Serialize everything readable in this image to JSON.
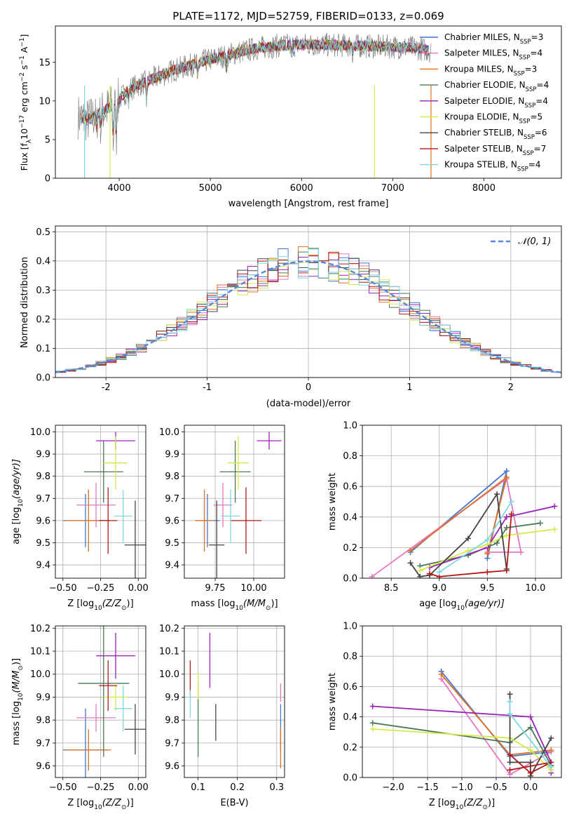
{
  "figure": {
    "title": "PLATE=1172, MJD=52759, FIBERID=0133, z=0.069"
  },
  "series": [
    {
      "name": "Chabrier MILES, N$_{SSP}$=3",
      "label": "Chabrier MILES, N",
      "sub": "SSP",
      "n": "=3",
      "color": "#4477cc"
    },
    {
      "name": "Salpeter MILES, N$_{SSP}$=4",
      "label": "Salpeter MILES, N",
      "sub": "SSP",
      "n": "=4",
      "color": "#e377c2"
    },
    {
      "name": "Kroupa MILES, N$_{SSP}$=3",
      "label": "Kroupa MILES, N",
      "sub": "SSP",
      "n": "=3",
      "color": "#e07020"
    },
    {
      "name": "Chabrier ELODIE, N$_{SSP}$=4",
      "label": "Chabrier ELODIE, N",
      "sub": "SSP",
      "n": "=4",
      "color": "#4a7a55"
    },
    {
      "name": "Salpeter ELODIE, N$_{SSP}$=4",
      "label": "Salpeter ELODIE, N",
      "sub": "SSP",
      "n": "=4",
      "color": "#9a22b8"
    },
    {
      "name": "Kroupa ELODIE, N$_{SSP}$=5",
      "label": "Kroupa ELODIE, N",
      "sub": "SSP",
      "n": "=5",
      "color": "#d8e84a"
    },
    {
      "name": "Chabrier STELIB, N$_{SSP}$=6",
      "label": "Chabrier STELIB, N",
      "sub": "SSP",
      "n": "=6",
      "color": "#444444"
    },
    {
      "name": "Salpeter STELIB, N$_{SSP}$=7",
      "label": "Salpeter STELIB, N",
      "sub": "SSP",
      "n": "=7",
      "color": "#b01818"
    },
    {
      "name": "Kroupa STELIB, N$_{SSP}$=4",
      "label": "Kroupa STELIB, N",
      "sub": "SSP",
      "n": "=4",
      "color": "#7fd8e0"
    }
  ],
  "chart_data": [
    {
      "id": "spectrum",
      "type": "line",
      "xlabel": "wavelength [Angstrom, rest frame]",
      "ylabel": "Flux [f_λ 10^-17 erg cm^-2 s^-1 A^-1]",
      "ylabel_parts": [
        "Flux [f",
        "λ",
        "10",
        "−17",
        " erg cm",
        "−2",
        " s",
        "−1",
        " A",
        "−1",
        "]"
      ],
      "xlim": [
        3300,
        8850
      ],
      "ylim": [
        0,
        19.7
      ],
      "xticks": [
        4000,
        5000,
        6000,
        7000,
        8000
      ],
      "yticks": [
        0,
        5,
        10,
        15
      ],
      "data_color": "#808080",
      "model_color": "#7fd8e0",
      "continuum": {
        "x": [
          3550,
          3650,
          3800,
          3950,
          4100,
          4300,
          4600,
          4900,
          5200,
          5500,
          5800,
          6100,
          6400,
          6700,
          7000,
          7300,
          7400
        ],
        "y": [
          8.0,
          7.5,
          8.5,
          9.5,
          11.5,
          12.5,
          14.0,
          15.0,
          16.0,
          16.8,
          17.2,
          17.3,
          17.2,
          17.1,
          17.0,
          16.8,
          16.5
        ]
      }
    },
    {
      "id": "residuals",
      "type": "histogram",
      "xlabel": "(data-model)/error",
      "ylabel": "Normed distribution",
      "xlim": [
        -2.5,
        2.5
      ],
      "ylim": [
        0,
        0.52
      ],
      "xticks": [
        -2,
        -1,
        0,
        1,
        2
      ],
      "yticks": [
        0.0,
        0.1,
        0.2,
        0.3,
        0.4,
        0.5
      ],
      "bin_width": 0.1,
      "reference": {
        "name": "N(0,1)",
        "label": "𝒩(0, 1)",
        "color": "#5588dd"
      }
    },
    {
      "id": "age_vs_Z",
      "type": "scatter",
      "xlabel_parts": [
        "Z [log",
        "10",
        "(Z/Z",
        "⊙",
        ")]"
      ],
      "ylabel_parts": [
        "age  [log",
        "10",
        "(age/yr)]"
      ],
      "xlim": [
        -0.55,
        0.05
      ],
      "ylim": [
        9.34,
        10.03
      ],
      "xticks": [
        -0.5,
        -0.25,
        0.0
      ],
      "xticklabels": [
        "−0.50",
        "−0.25",
        "0.00"
      ],
      "yticks": [
        9.4,
        9.5,
        9.6,
        9.7,
        9.8,
        9.9,
        10.0
      ],
      "points": [
        {
          "s": 0,
          "x": -0.35,
          "xerr": 0.15,
          "y": 9.6,
          "yerr": 0.12
        },
        {
          "s": 1,
          "x": -0.28,
          "xerr": 0.13,
          "y": 9.67,
          "yerr": 0.1
        },
        {
          "s": 2,
          "x": -0.33,
          "xerr": 0.15,
          "y": 9.6,
          "yerr": 0.14
        },
        {
          "s": 3,
          "x": -0.23,
          "xerr": 0.13,
          "y": 9.82,
          "yerr": 0.14
        },
        {
          "s": 4,
          "x": -0.15,
          "xerr": 0.13,
          "y": 9.96,
          "yerr": 0.04
        },
        {
          "s": 5,
          "x": -0.15,
          "xerr": 0.08,
          "y": 9.86,
          "yerr": 0.12
        },
        {
          "s": 6,
          "x": -0.02,
          "xerr": 0.07,
          "y": 9.49,
          "yerr": 0.2
        },
        {
          "s": 7,
          "x": -0.2,
          "xerr": 0.06,
          "y": 9.6,
          "yerr": 0.15
        },
        {
          "s": 8,
          "x": -0.1,
          "xerr": 0.06,
          "y": 9.62,
          "yerr": 0.12
        }
      ]
    },
    {
      "id": "age_vs_mass",
      "type": "scatter",
      "xlabel_parts": [
        "mass [log",
        "10",
        "(M/M",
        "⊙",
        ")]"
      ],
      "ylabel_parts": [],
      "xlim": [
        9.55,
        10.2
      ],
      "ylim": [
        9.34,
        10.03
      ],
      "xticks": [
        9.75,
        10.0
      ],
      "xticklabels": [
        "9.75",
        "10.00"
      ],
      "yticks": [
        9.4,
        9.5,
        9.6,
        9.7,
        9.8,
        9.9,
        10.0
      ],
      "points": [
        {
          "s": 0,
          "x": 9.7,
          "xerr": 0.08,
          "y": 9.6,
          "yerr": 0.12
        },
        {
          "s": 1,
          "x": 9.8,
          "xerr": 0.06,
          "y": 9.67,
          "yerr": 0.1
        },
        {
          "s": 2,
          "x": 9.68,
          "xerr": 0.06,
          "y": 9.6,
          "yerr": 0.14
        },
        {
          "s": 3,
          "x": 9.88,
          "xerr": 0.1,
          "y": 9.82,
          "yerr": 0.14
        },
        {
          "s": 4,
          "x": 10.1,
          "xerr": 0.08,
          "y": 9.96,
          "yerr": 0.04
        },
        {
          "s": 5,
          "x": 9.9,
          "xerr": 0.07,
          "y": 9.86,
          "yerr": 0.12
        },
        {
          "s": 6,
          "x": 9.76,
          "xerr": 0.05,
          "y": 9.49,
          "yerr": 0.2
        },
        {
          "s": 7,
          "x": 9.95,
          "xerr": 0.1,
          "y": 9.6,
          "yerr": 0.15
        },
        {
          "s": 8,
          "x": 9.85,
          "xerr": 0.06,
          "y": 9.62,
          "yerr": 0.12
        }
      ]
    },
    {
      "id": "weight_vs_age",
      "type": "line",
      "xlabel_parts": [
        "age  [log",
        "10",
        "(age/yr)]"
      ],
      "ylabel": "mass weight",
      "xlim": [
        8.2,
        10.27
      ],
      "ylim": [
        0,
        1.0
      ],
      "xticks": [
        8.5,
        9.0,
        9.5,
        10.0
      ],
      "xticklabels": [
        "8.5",
        "9.0",
        "9.5",
        "10.0"
      ],
      "yticks": [
        0.0,
        0.2,
        0.4,
        0.6,
        0.8,
        1.0
      ],
      "series_points": [
        {
          "s": 0,
          "x": [
            8.7,
            9.7,
            9.5
          ],
          "y": [
            0.17,
            0.7,
            0.13
          ]
        },
        {
          "s": 1,
          "x": [
            8.3,
            9.7,
            9.85,
            9.5
          ],
          "y": [
            0.01,
            0.65,
            0.17,
            0.17
          ]
        },
        {
          "s": 2,
          "x": [
            8.7,
            9.7,
            9.5
          ],
          "y": [
            0.18,
            0.66,
            0.16
          ]
        },
        {
          "s": 3,
          "x": [
            8.8,
            9.3,
            9.6,
            9.7,
            10.05
          ],
          "y": [
            0.08,
            0.15,
            0.23,
            0.33,
            0.36
          ]
        },
        {
          "s": 4,
          "x": [
            8.9,
            9.5,
            9.7,
            10.2
          ],
          "y": [
            0.07,
            0.2,
            0.4,
            0.47
          ]
        },
        {
          "s": 5,
          "x": [
            8.8,
            9.3,
            9.5,
            9.7,
            10.2
          ],
          "y": [
            0.05,
            0.18,
            0.22,
            0.28,
            0.32
          ]
        },
        {
          "s": 6,
          "x": [
            8.7,
            8.8,
            8.9,
            9.3,
            9.6,
            9.7
          ],
          "y": [
            0.1,
            0.01,
            0.02,
            0.26,
            0.55,
            0.06
          ]
        },
        {
          "s": 7,
          "x": [
            8.9,
            9.0,
            9.5,
            9.7,
            9.75
          ],
          "y": [
            0.03,
            0.01,
            0.04,
            0.05,
            0.42
          ]
        },
        {
          "s": 8,
          "x": [
            9.0,
            9.5,
            9.75
          ],
          "y": [
            0.04,
            0.25,
            0.5
          ]
        }
      ]
    },
    {
      "id": "mass_vs_Z",
      "type": "scatter",
      "xlabel_parts": [
        "Z [log",
        "10",
        "(Z/Z",
        "⊙",
        ")]"
      ],
      "ylabel_parts": [
        "mass [log",
        "10",
        "(M/M",
        "⊙",
        ")]"
      ],
      "xlim": [
        -0.55,
        0.05
      ],
      "ylim": [
        9.55,
        10.21
      ],
      "xticks": [
        -0.5,
        -0.25,
        0.0
      ],
      "xticklabels": [
        "−0.50",
        "−0.25",
        "0.00"
      ],
      "yticks": [
        9.6,
        9.7,
        9.8,
        9.9,
        10.0,
        10.1,
        10.2
      ],
      "points": [
        {
          "s": 0,
          "x": -0.35,
          "xerr": 0.15,
          "y": 9.67,
          "yerr": 0.18
        },
        {
          "s": 1,
          "x": -0.28,
          "xerr": 0.13,
          "y": 9.81,
          "yerr": 0.06
        },
        {
          "s": 2,
          "x": -0.33,
          "xerr": 0.15,
          "y": 9.67,
          "yerr": 0.09
        },
        {
          "s": 3,
          "x": -0.23,
          "xerr": 0.17,
          "y": 9.96,
          "yerr": 0.32
        },
        {
          "s": 4,
          "x": -0.15,
          "xerr": 0.13,
          "y": 10.08,
          "yerr": 0.1
        },
        {
          "s": 5,
          "x": -0.15,
          "xerr": 0.08,
          "y": 9.9,
          "yerr": 0.06
        },
        {
          "s": 6,
          "x": -0.02,
          "xerr": 0.07,
          "y": 9.76,
          "yerr": 0.11
        },
        {
          "s": 7,
          "x": -0.2,
          "xerr": 0.06,
          "y": 9.95,
          "yerr": 0.11
        },
        {
          "s": 8,
          "x": -0.1,
          "xerr": 0.06,
          "y": 9.85,
          "yerr": 0.1
        }
      ]
    },
    {
      "id": "mass_vs_ebv",
      "type": "scatter",
      "xlabel": "E(B-V)",
      "ylabel_parts": [],
      "xlim": [
        0.065,
        0.32
      ],
      "ylim": [
        9.55,
        10.21
      ],
      "xticks": [
        0.1,
        0.2,
        0.3
      ],
      "xticklabels": [
        "0.1",
        "0.2",
        "0.3"
      ],
      "yticks": [
        9.6,
        9.7,
        9.8,
        9.9,
        10.0,
        10.1,
        10.2
      ],
      "points": [
        {
          "s": 0,
          "x": 0.31,
          "xerr": 0,
          "y": 9.77,
          "yerr": 0.1
        },
        {
          "s": 1,
          "x": 0.31,
          "xerr": 0,
          "y": 9.92,
          "yerr": 0.04
        },
        {
          "s": 2,
          "x": 0.31,
          "xerr": 0,
          "y": 9.68,
          "yerr": 0.09
        },
        {
          "s": 3,
          "x": 0.1,
          "xerr": 0,
          "y": 9.8,
          "yerr": 0.16
        },
        {
          "s": 4,
          "x": 0.13,
          "xerr": 0,
          "y": 10.06,
          "yerr": 0.12
        },
        {
          "s": 5,
          "x": 0.1,
          "xerr": 0,
          "y": 9.95,
          "yerr": 0.06
        },
        {
          "s": 6,
          "x": 0.145,
          "xerr": 0,
          "y": 9.79,
          "yerr": 0.08
        },
        {
          "s": 7,
          "x": 0.08,
          "xerr": 0,
          "y": 9.98,
          "yerr": 0.08
        },
        {
          "s": 8,
          "x": 0.08,
          "xerr": 0,
          "y": 9.87,
          "yerr": 0.06
        }
      ]
    },
    {
      "id": "weight_vs_Z",
      "type": "line",
      "xlabel_parts": [
        "Z [log",
        "10",
        "(Z/Z",
        "⊙",
        ")]"
      ],
      "ylabel": "mass weight",
      "xlim": [
        -2.45,
        0.45
      ],
      "ylim": [
        0,
        1.0
      ],
      "xticks": [
        -2.0,
        -1.5,
        -1.0,
        -0.5,
        0.0
      ],
      "xticklabels": [
        "−2.0",
        "−1.5",
        "−1.0",
        "−0.5",
        "0.0"
      ],
      "yticks": [
        0.0,
        0.2,
        0.4,
        0.6,
        0.8,
        1.0
      ],
      "series_points": [
        {
          "s": 0,
          "x": [
            -1.3,
            -0.3,
            0.3
          ],
          "y": [
            0.7,
            0.14,
            0.17
          ]
        },
        {
          "s": 1,
          "x": [
            -1.3,
            -0.3,
            0.3
          ],
          "y": [
            0.65,
            0.02,
            0.17
          ]
        },
        {
          "s": 2,
          "x": [
            -1.3,
            -0.3,
            0.3
          ],
          "y": [
            0.68,
            0.15,
            0.18
          ]
        },
        {
          "s": 3,
          "x": [
            -2.3,
            -0.3,
            0.0,
            0.3
          ],
          "y": [
            0.36,
            0.23,
            0.33,
            0.08
          ]
        },
        {
          "s": 4,
          "x": [
            -2.3,
            0.0,
            0.3,
            0.3
          ],
          "y": [
            0.47,
            0.4,
            0.1,
            0.03
          ]
        },
        {
          "s": 5,
          "x": [
            -2.3,
            -0.3,
            0.0,
            0.3
          ],
          "y": [
            0.32,
            0.26,
            0.18,
            0.05
          ]
        },
        {
          "s": 6,
          "x": [
            -0.3,
            -0.3,
            0.0,
            0.0,
            0.3
          ],
          "y": [
            0.55,
            0.1,
            0.1,
            0.01,
            0.26
          ]
        },
        {
          "s": 7,
          "x": [
            -0.3,
            0.0,
            0.3,
            -0.3
          ],
          "y": [
            0.15,
            0.03,
            0.1,
            0.05
          ]
        },
        {
          "s": 8,
          "x": [
            -0.3,
            -0.3,
            0.3
          ],
          "y": [
            0.5,
            0.42,
            0.07
          ]
        }
      ]
    }
  ]
}
